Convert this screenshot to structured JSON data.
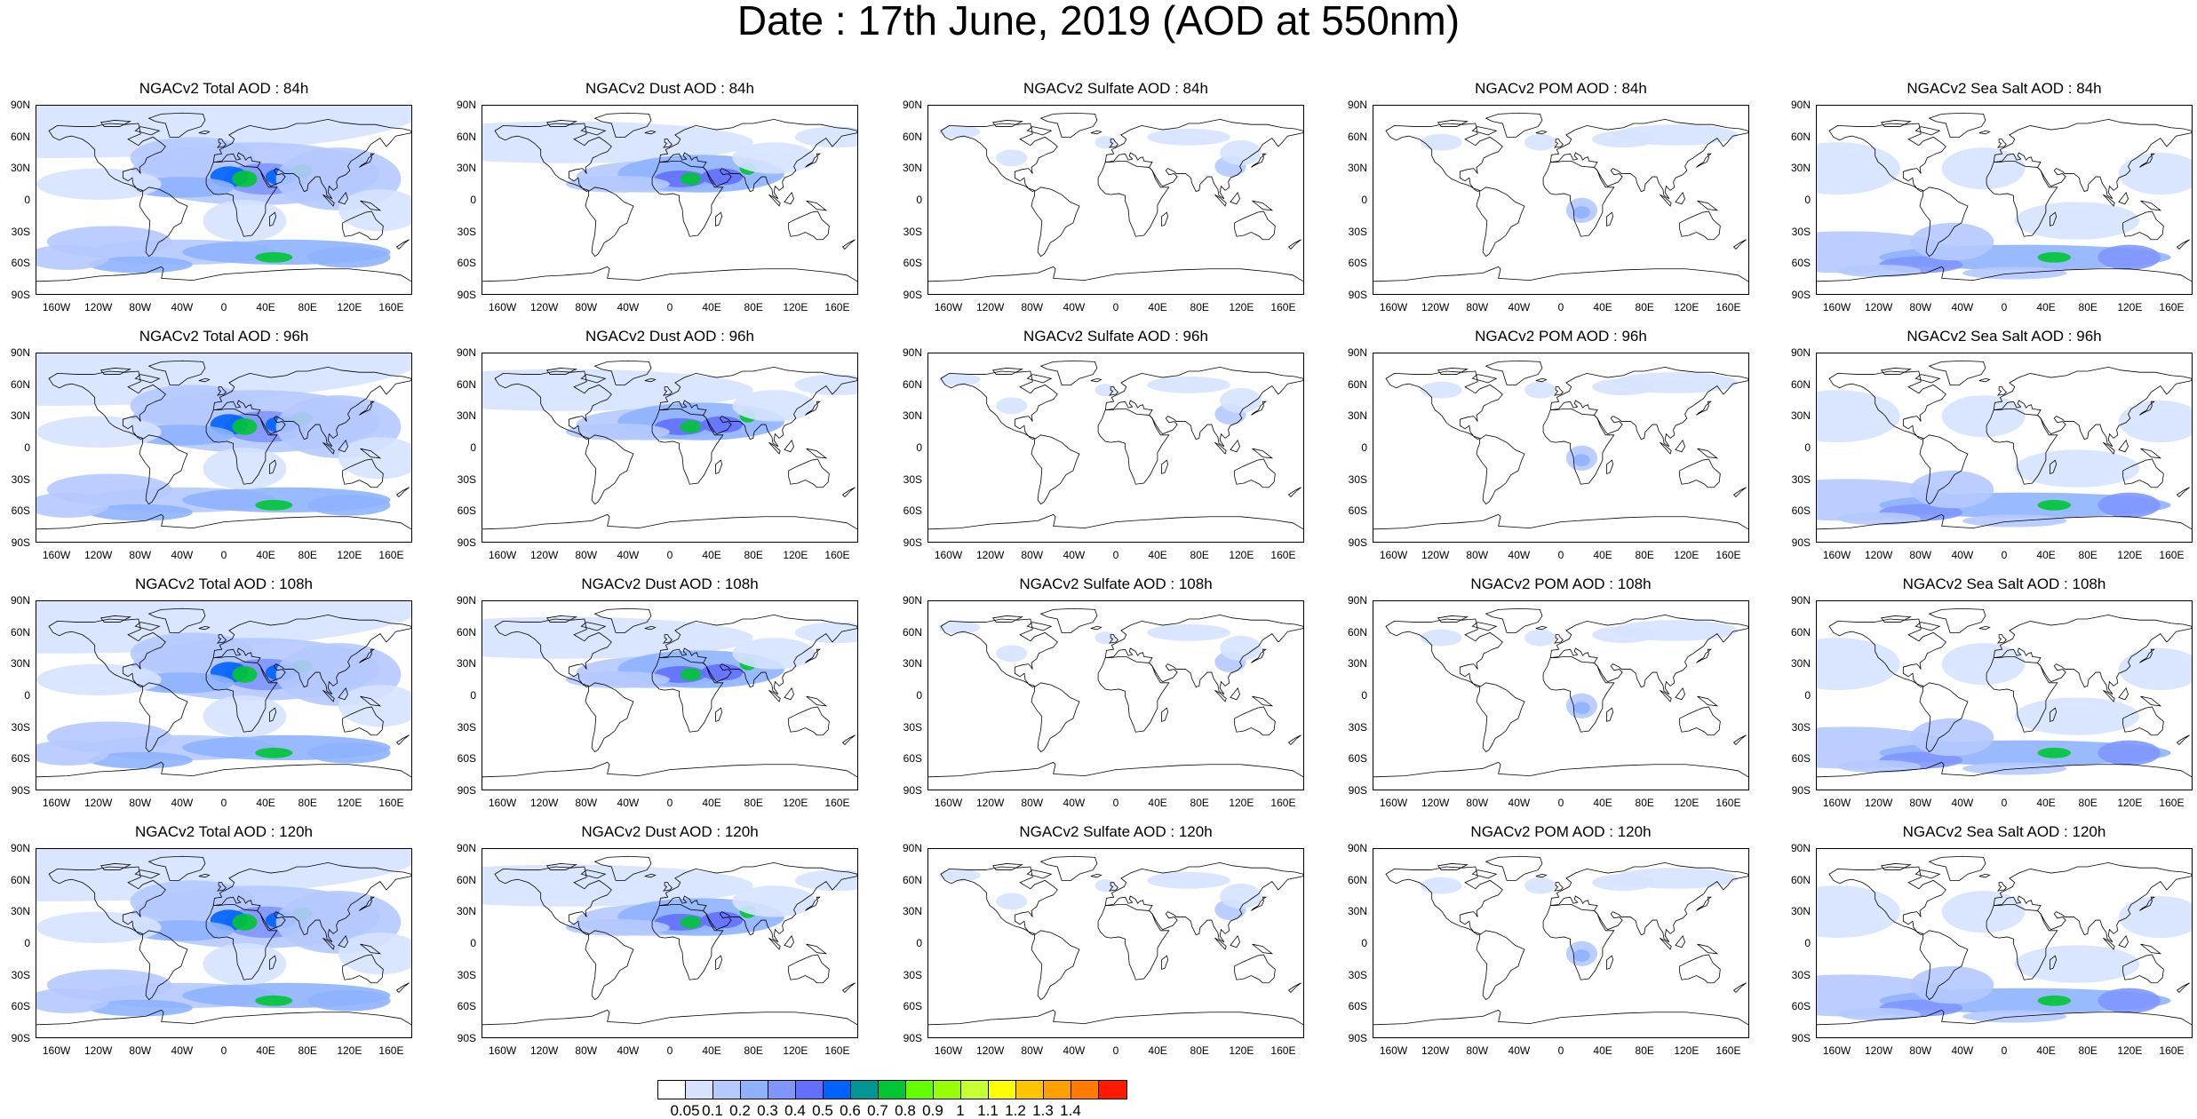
{
  "title": "Date : 17th June, 2019 (AOD at 550nm)",
  "lat_ticks": [
    "90N",
    "60N",
    "30N",
    "0",
    "30S",
    "60S",
    "90S"
  ],
  "lon_ticks": [
    "160W",
    "120W",
    "80W",
    "40W",
    "0",
    "40E",
    "80E",
    "120E",
    "160E"
  ],
  "panels": [
    {
      "title": "NGACv2 Total AOD : 84h",
      "species": "total"
    },
    {
      "title": "NGACv2 Dust AOD : 84h",
      "species": "dust"
    },
    {
      "title": "NGACv2 Sulfate AOD : 84h",
      "species": "sulfate"
    },
    {
      "title": "NGACv2 POM AOD : 84h",
      "species": "pom"
    },
    {
      "title": "NGACv2 Sea Salt AOD : 84h",
      "species": "seasalt"
    },
    {
      "title": "NGACv2 Total AOD : 96h",
      "species": "total"
    },
    {
      "title": "NGACv2 Dust AOD : 96h",
      "species": "dust"
    },
    {
      "title": "NGACv2 Sulfate AOD : 96h",
      "species": "sulfate"
    },
    {
      "title": "NGACv2 POM AOD : 96h",
      "species": "pom"
    },
    {
      "title": "NGACv2 Sea Salt AOD : 96h",
      "species": "seasalt"
    },
    {
      "title": "NGACv2 Total AOD : 108h",
      "species": "total"
    },
    {
      "title": "NGACv2 Dust AOD : 108h",
      "species": "dust"
    },
    {
      "title": "NGACv2 Sulfate AOD : 108h",
      "species": "sulfate"
    },
    {
      "title": "NGACv2 POM AOD : 108h",
      "species": "pom"
    },
    {
      "title": "NGACv2 Sea Salt AOD : 108h",
      "species": "seasalt"
    },
    {
      "title": "NGACv2 Total AOD : 120h",
      "species": "total"
    },
    {
      "title": "NGACv2 Dust AOD : 120h",
      "species": "dust"
    },
    {
      "title": "NGACv2 Sulfate AOD : 120h",
      "species": "sulfate"
    },
    {
      "title": "NGACv2 POM AOD : 120h",
      "species": "pom"
    },
    {
      "title": "NGACv2 Sea Salt  AOD : 120h",
      "species": "seasalt"
    }
  ],
  "colorbar": {
    "colors": [
      "#ffffff",
      "#d6e2ff",
      "#b5c9ff",
      "#8eb2ff",
      "#7f96ff",
      "#6370ff",
      "#0063ff",
      "#009696",
      "#00c633",
      "#63ff00",
      "#96ff00",
      "#c6ff33",
      "#ffff00",
      "#ffc600",
      "#ffa000",
      "#ff7c00",
      "#ff1900"
    ],
    "labels": [
      "0.05",
      "0.1",
      "0.2",
      "0.3",
      "0.4",
      "0.5",
      "0.6",
      "0.7",
      "0.8",
      "0.9",
      "1",
      "1.1",
      "1.2",
      "1.3",
      "1.4"
    ]
  }
}
